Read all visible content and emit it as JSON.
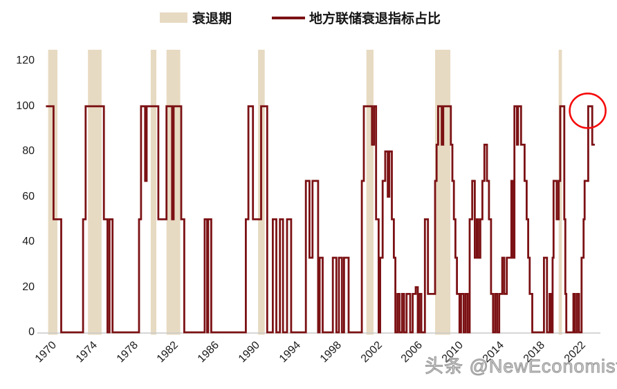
{
  "watermark": "头条 @NewEconomist",
  "chart_data": {
    "type": "line",
    "title": "",
    "legend": [
      {
        "label": "衰退期",
        "type": "band",
        "color": "#e7dac2"
      },
      {
        "label": "地方联储衰退指标占比",
        "type": "line",
        "color": "#7b1114"
      }
    ],
    "x_axis": {
      "ticks": [
        1970,
        1974,
        1978,
        1982,
        1986,
        1990,
        1994,
        1998,
        2002,
        2006,
        2010,
        2014,
        2018,
        2022
      ],
      "range": [
        1969.4,
        2024.2
      ]
    },
    "y_axis": {
      "ticks": [
        0,
        20,
        40,
        60,
        80,
        100,
        120
      ],
      "range": [
        0,
        125
      ]
    },
    "grid": "off",
    "legend_position": "top-center",
    "axis_line_color": "#c9c9c9",
    "recession_bands": [
      [
        1969.92,
        1970.83
      ],
      [
        1973.83,
        1975.17
      ],
      [
        1980.0,
        1980.55
      ],
      [
        1981.55,
        1982.9
      ],
      [
        1990.55,
        1991.2
      ],
      [
        2001.2,
        2001.9
      ],
      [
        2007.95,
        2009.45
      ],
      [
        2020.1,
        2020.42
      ]
    ],
    "series": [
      {
        "name": "地方联储衰退指标占比",
        "step": true,
        "x_end": 2023.65,
        "points": [
          [
            1969.7,
            100
          ],
          [
            1970.45,
            50
          ],
          [
            1971.2,
            0
          ],
          [
            1973.35,
            50
          ],
          [
            1973.6,
            100
          ],
          [
            1975.4,
            50
          ],
          [
            1975.75,
            0
          ],
          [
            1975.95,
            50
          ],
          [
            1976.25,
            0
          ],
          [
            1978.85,
            50
          ],
          [
            1979.05,
            100
          ],
          [
            1979.45,
            67
          ],
          [
            1979.6,
            100
          ],
          [
            1980.75,
            50
          ],
          [
            1981.55,
            100
          ],
          [
            1982.1,
            50
          ],
          [
            1982.25,
            100
          ],
          [
            1983.0,
            50
          ],
          [
            1983.3,
            0
          ],
          [
            1985.3,
            50
          ],
          [
            1985.55,
            0
          ],
          [
            1985.65,
            50
          ],
          [
            1985.95,
            0
          ],
          [
            1989.35,
            50
          ],
          [
            1989.6,
            100
          ],
          [
            1990.05,
            50
          ],
          [
            1990.85,
            100
          ],
          [
            1991.45,
            0
          ],
          [
            1992.0,
            50
          ],
          [
            1992.35,
            0
          ],
          [
            1992.7,
            50
          ],
          [
            1993.0,
            0
          ],
          [
            1993.4,
            50
          ],
          [
            1993.8,
            0
          ],
          [
            1995.25,
            67
          ],
          [
            1995.6,
            33
          ],
          [
            1995.9,
            67
          ],
          [
            1996.45,
            0
          ],
          [
            1996.6,
            33
          ],
          [
            1996.9,
            0
          ],
          [
            1997.9,
            33
          ],
          [
            1998.25,
            0
          ],
          [
            1998.5,
            33
          ],
          [
            1998.8,
            0
          ],
          [
            1999.0,
            33
          ],
          [
            1999.45,
            0
          ],
          [
            2000.75,
            67
          ],
          [
            2000.95,
            100
          ],
          [
            2001.75,
            83
          ],
          [
            2001.95,
            100
          ],
          [
            2002.15,
            50
          ],
          [
            2002.4,
            0
          ],
          [
            2002.55,
            33
          ],
          [
            2002.8,
            67
          ],
          [
            2003.05,
            80
          ],
          [
            2003.3,
            60
          ],
          [
            2003.45,
            80
          ],
          [
            2003.7,
            50
          ],
          [
            2003.9,
            33
          ],
          [
            2004.05,
            0
          ],
          [
            2004.25,
            17
          ],
          [
            2004.45,
            0
          ],
          [
            2004.7,
            17
          ],
          [
            2004.9,
            0
          ],
          [
            2005.15,
            17
          ],
          [
            2005.5,
            0
          ],
          [
            2005.75,
            17
          ],
          [
            2006.05,
            20
          ],
          [
            2006.25,
            0
          ],
          [
            2006.4,
            17
          ],
          [
            2006.6,
            0
          ],
          [
            2006.95,
            50
          ],
          [
            2007.25,
            17
          ],
          [
            2007.95,
            67
          ],
          [
            2008.1,
            83
          ],
          [
            2008.25,
            100
          ],
          [
            2008.6,
            83
          ],
          [
            2008.75,
            100
          ],
          [
            2009.5,
            83
          ],
          [
            2009.65,
            67
          ],
          [
            2009.8,
            50
          ],
          [
            2009.95,
            33
          ],
          [
            2010.1,
            17
          ],
          [
            2010.35,
            0
          ],
          [
            2010.5,
            17
          ],
          [
            2010.75,
            0
          ],
          [
            2010.95,
            17
          ],
          [
            2011.15,
            0
          ],
          [
            2011.35,
            50
          ],
          [
            2011.6,
            67
          ],
          [
            2011.85,
            33
          ],
          [
            2012.05,
            50
          ],
          [
            2012.2,
            33
          ],
          [
            2012.4,
            50
          ],
          [
            2012.6,
            67
          ],
          [
            2012.8,
            83
          ],
          [
            2013.05,
            67
          ],
          [
            2013.25,
            50
          ],
          [
            2013.45,
            17
          ],
          [
            2013.65,
            0
          ],
          [
            2013.85,
            17
          ],
          [
            2014.05,
            0
          ],
          [
            2014.25,
            17
          ],
          [
            2014.55,
            33
          ],
          [
            2014.75,
            17
          ],
          [
            2015.0,
            33
          ],
          [
            2015.45,
            67
          ],
          [
            2015.6,
            33
          ],
          [
            2015.75,
            100
          ],
          [
            2016.0,
            83
          ],
          [
            2016.1,
            100
          ],
          [
            2016.4,
            83
          ],
          [
            2016.75,
            67
          ],
          [
            2016.95,
            50
          ],
          [
            2017.1,
            33
          ],
          [
            2017.25,
            17
          ],
          [
            2017.5,
            0
          ],
          [
            2018.65,
            33
          ],
          [
            2018.95,
            0
          ],
          [
            2019.2,
            17
          ],
          [
            2019.35,
            0
          ],
          [
            2019.5,
            33
          ],
          [
            2019.6,
            67
          ],
          [
            2019.9,
            50
          ],
          [
            2020.1,
            67
          ],
          [
            2020.25,
            100
          ],
          [
            2020.65,
            50
          ],
          [
            2020.75,
            17
          ],
          [
            2020.85,
            0
          ],
          [
            2021.55,
            17
          ],
          [
            2021.7,
            0
          ],
          [
            2021.9,
            17
          ],
          [
            2022.1,
            0
          ],
          [
            2022.35,
            33
          ],
          [
            2022.55,
            50
          ],
          [
            2022.65,
            67
          ],
          [
            2023.0,
            100
          ],
          [
            2023.4,
            83
          ]
        ]
      }
    ],
    "annotation": {
      "type": "circle",
      "x": 2022.95,
      "y": 98,
      "color": "#f50a0a"
    }
  }
}
